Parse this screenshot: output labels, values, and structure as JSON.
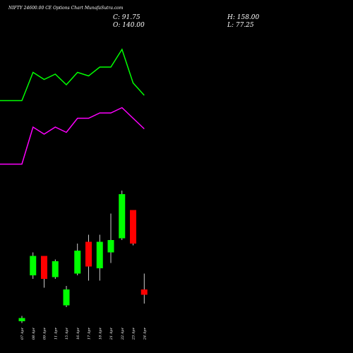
{
  "chart_data": {
    "type": "candlestick",
    "title": "NIFTY 24600.00 CE Options Chart MunafaSutra.com",
    "ohlc_summary": {
      "close_label": "C: 91.75",
      "open_label": "O: 140.00",
      "high_label": "H: 158.00",
      "low_label": "L: 77.25"
    },
    "categories": [
      "07 Apr",
      "08 Apr",
      "09 Apr",
      "11 Apr",
      "15 Apr",
      "16 Apr",
      "17 Apr",
      "18 Apr",
      "21 Apr",
      "22 Apr",
      "23 Apr",
      "24 Apr"
    ],
    "candles": [
      {
        "date": "07 Apr",
        "open": 9.0,
        "high": 10.5,
        "low": 8.5,
        "close": 9.9,
        "color": "#00ff00"
      },
      {
        "date": "08 Apr",
        "open": 22.0,
        "high": 28.5,
        "low": 21.0,
        "close": 27.5,
        "color": "#00ff00"
      },
      {
        "date": "09 Apr",
        "open": 27.5,
        "high": 27.5,
        "low": 18.5,
        "close": 21.0,
        "color": "#ff0000"
      },
      {
        "date": "11 Apr",
        "open": 21.5,
        "high": 26.5,
        "low": 21.0,
        "close": 26.0,
        "color": "#00ff00"
      },
      {
        "date": "15 Apr",
        "open": 13.5,
        "high": 19.0,
        "low": 13.0,
        "close": 18.0,
        "color": "#00ff00"
      },
      {
        "date": "16 Apr",
        "open": 22.5,
        "high": 31.0,
        "low": 22.0,
        "close": 29.0,
        "color": "#00ff00"
      },
      {
        "date": "17 Apr",
        "open": 31.5,
        "high": 33.5,
        "low": 20.5,
        "close": 24.5,
        "color": "#ff0000"
      },
      {
        "date": "18 Apr",
        "open": 24.0,
        "high": 33.5,
        "low": 20.5,
        "close": 31.5,
        "color": "#00ff00"
      },
      {
        "date": "21 Apr",
        "open": 28.5,
        "high": 39.5,
        "low": 25.5,
        "close": 32.0,
        "color": "#00ff00"
      },
      {
        "date": "22 Apr",
        "open": 32.5,
        "high": 46.0,
        "low": 32.0,
        "close": 45.0,
        "color": "#00ff00"
      },
      {
        "date": "23 Apr",
        "open": 40.5,
        "high": 40.5,
        "low": 30.5,
        "close": 31.0,
        "color": "#ff0000"
      },
      {
        "date": "24 Apr",
        "open": 18.0,
        "high": 22.5,
        "low": 14.0,
        "close": 16.5,
        "color": "#ff0000"
      }
    ],
    "ylim": [
      0,
      100
    ],
    "overlays": [
      {
        "color": "#00ff00",
        "values": [
          71.5,
          71.5,
          79.5,
          77.5,
          79.0,
          76.0,
          79.5,
          78.5,
          81.0,
          81.0,
          86.0,
          76.5,
          73.0
        ]
      },
      {
        "color": "#ff00ff",
        "values": [
          53.5,
          53.5,
          64.0,
          62.0,
          64.0,
          62.5,
          66.5,
          66.5,
          68.0,
          68.0,
          69.5,
          66.5,
          63.5
        ]
      }
    ],
    "grid": false,
    "legend": "none"
  }
}
